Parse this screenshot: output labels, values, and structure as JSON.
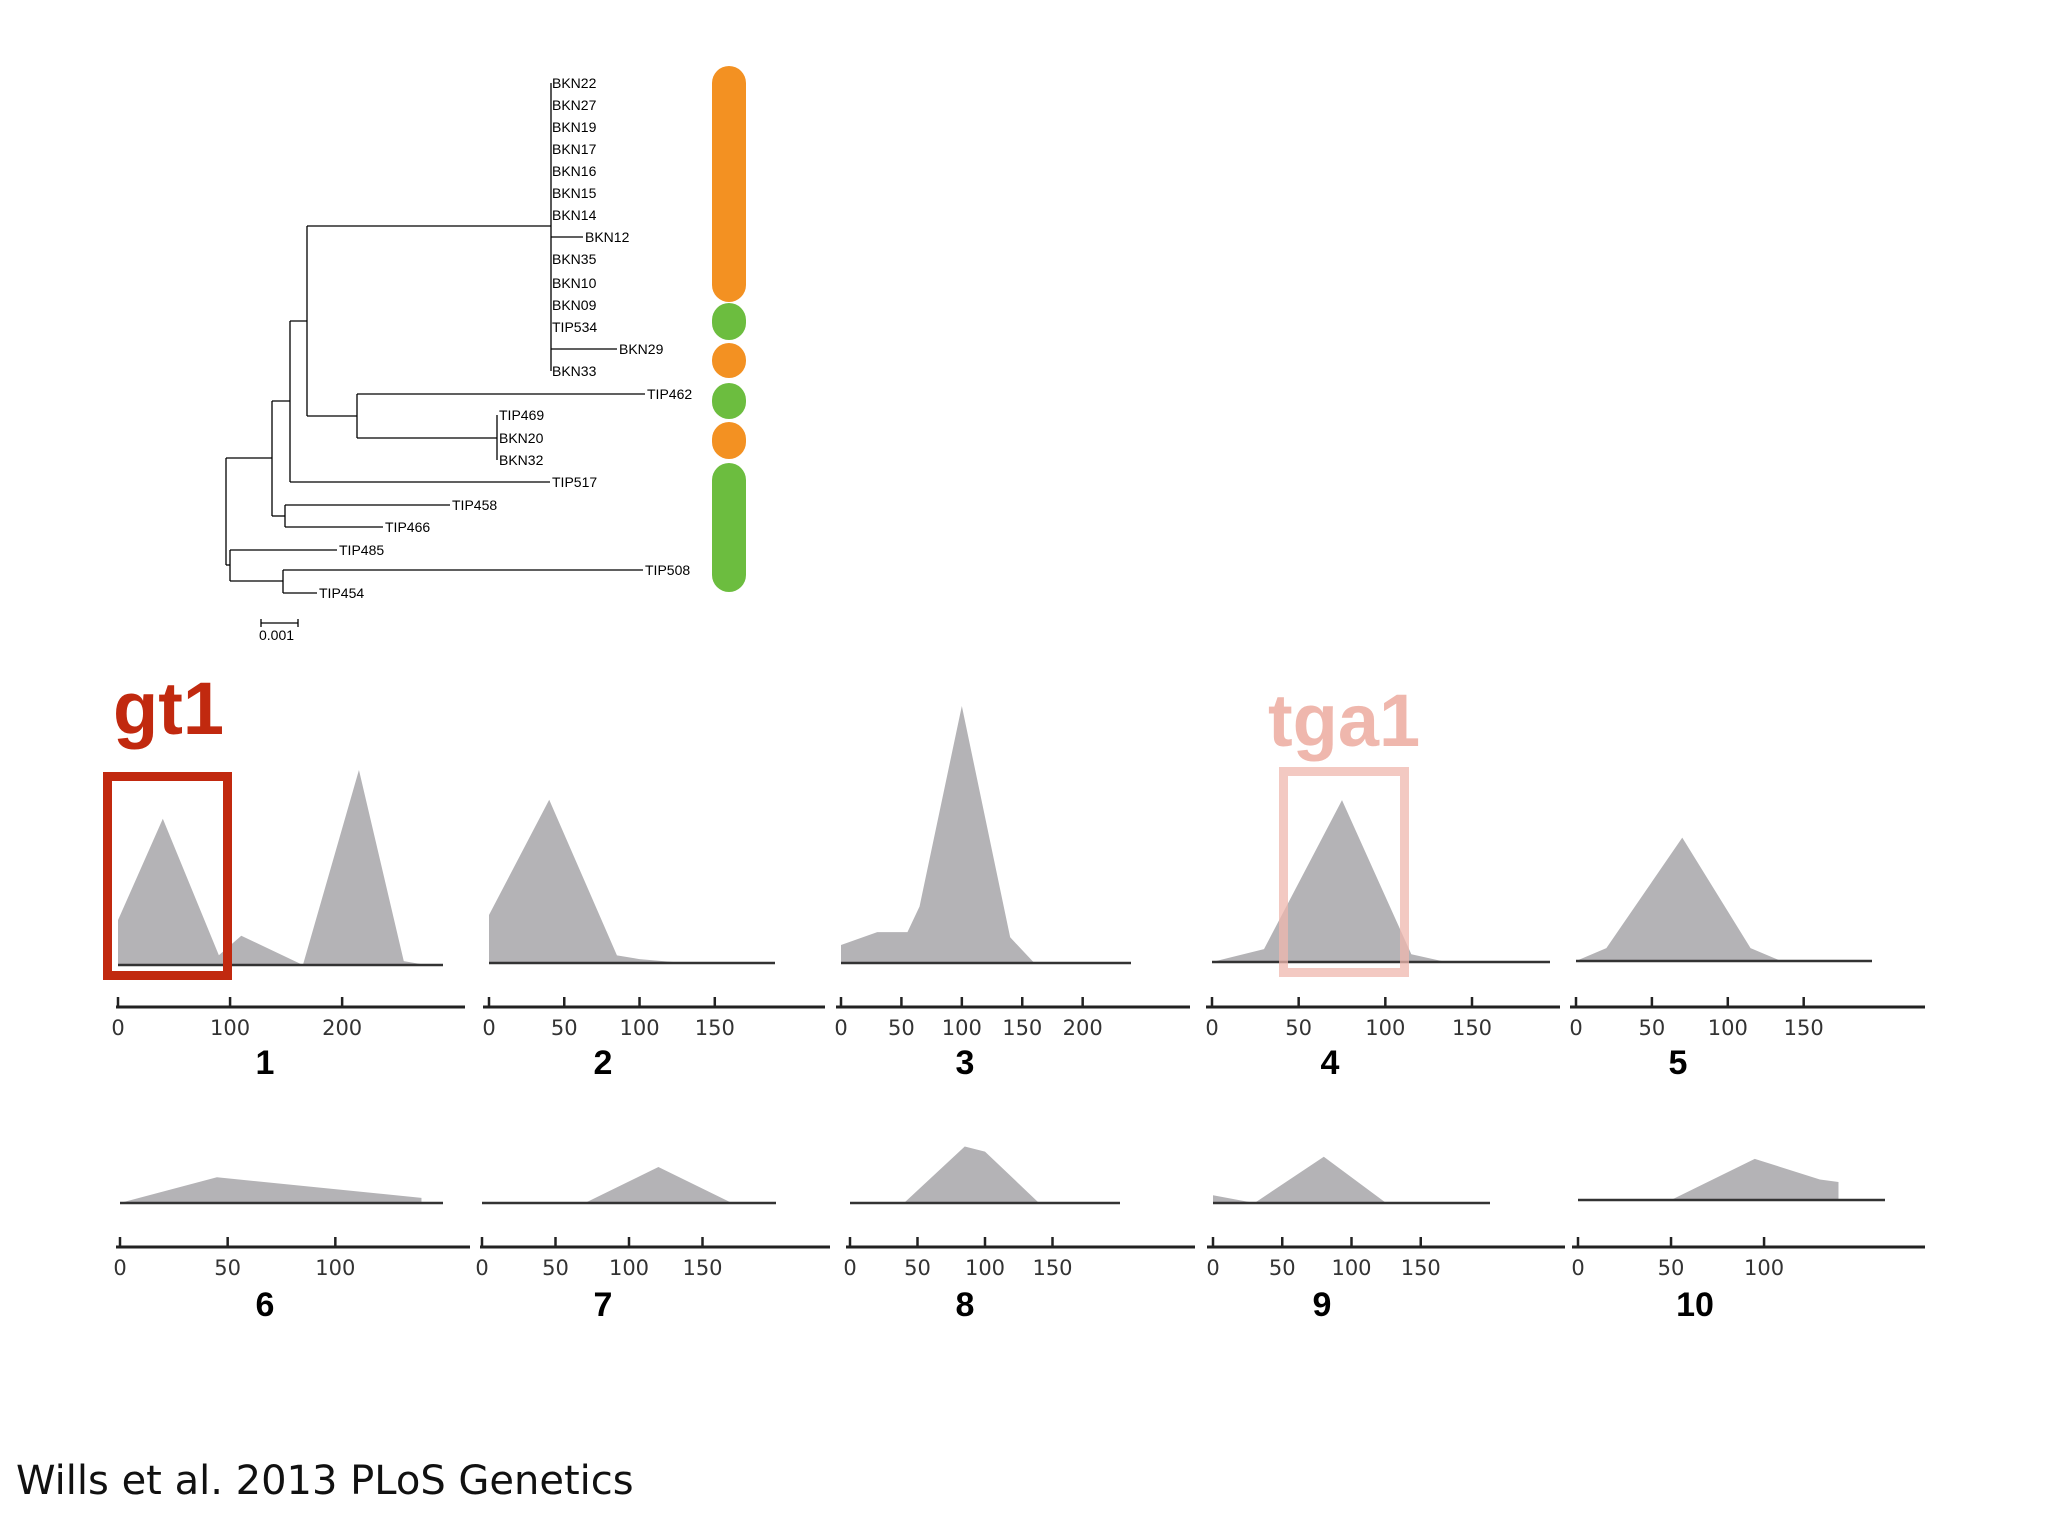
{
  "tree": {
    "taxa": [
      "BKN22",
      "BKN27",
      "BKN19",
      "BKN17",
      "BKN16",
      "BKN15",
      "BKN14",
      "BKN12",
      "BKN35",
      "BKN10",
      "BKN09",
      "TIP534",
      "BKN29",
      "BKN33",
      "TIP462",
      "TIP469",
      "BKN20",
      "BKN32",
      "TIP517",
      "TIP458",
      "TIP466",
      "TIP485",
      "TIP508",
      "TIP454"
    ],
    "scale_label": "0.001",
    "group_colors": {
      "orange": "#f39122",
      "green": "#6cbd3f"
    },
    "group_bars": [
      "orange",
      "green",
      "orange",
      "green",
      "orange",
      "green"
    ]
  },
  "highlights": {
    "gt1": {
      "label": "gt1",
      "color": "#c1290f",
      "panel": "1"
    },
    "tga1": {
      "label": "tga1",
      "color": "#efb7ad",
      "panel": "4"
    }
  },
  "chart_data": [
    {
      "type": "area",
      "panel_label": "1",
      "xlim": [
        0,
        290
      ],
      "ticks": [
        0,
        100,
        200
      ],
      "x": [
        0,
        40,
        90,
        110,
        165,
        215,
        255,
        275
      ],
      "y": [
        0.23,
        0.75,
        0.05,
        0.15,
        0.0,
        1.0,
        0.02,
        0.0
      ]
    },
    {
      "type": "area",
      "panel_label": "2",
      "xlim": [
        0,
        190
      ],
      "ticks": [
        0,
        50,
        100,
        150
      ],
      "x": [
        0,
        40,
        85,
        100,
        130,
        165
      ],
      "y": [
        0.25,
        0.85,
        0.04,
        0.02,
        0.0,
        0.0
      ]
    },
    {
      "type": "area",
      "panel_label": "3",
      "xlim": [
        0,
        240
      ],
      "ticks": [
        0,
        50,
        100,
        150,
        200
      ],
      "x": [
        0,
        30,
        55,
        65,
        100,
        140,
        160,
        200
      ],
      "y": [
        0.07,
        0.12,
        0.12,
        0.22,
        1.0,
        0.1,
        0.0,
        0.0
      ]
    },
    {
      "type": "area",
      "panel_label": "4",
      "xlim": [
        0,
        195
      ],
      "ticks": [
        0,
        50,
        100,
        150
      ],
      "x": [
        0,
        30,
        75,
        115,
        135,
        185
      ],
      "y": [
        0.0,
        0.05,
        0.63,
        0.03,
        0.0,
        0.0
      ]
    },
    {
      "type": "area",
      "panel_label": "5",
      "xlim": [
        0,
        195
      ],
      "ticks": [
        0,
        50,
        100,
        150
      ],
      "x": [
        0,
        20,
        70,
        115,
        135,
        165
      ],
      "y": [
        0.0,
        0.05,
        0.48,
        0.05,
        0.0,
        0.0
      ]
    },
    {
      "type": "area",
      "panel_label": "6",
      "xlim": [
        0,
        150
      ],
      "ticks": [
        0,
        50,
        100
      ],
      "x": [
        0,
        45,
        140
      ],
      "y": [
        0.0,
        0.1,
        0.02
      ]
    },
    {
      "type": "area",
      "panel_label": "7",
      "xlim": [
        0,
        200
      ],
      "ticks": [
        0,
        50,
        100,
        150
      ],
      "x": [
        0,
        70,
        120,
        170
      ],
      "y": [
        0.0,
        0.0,
        0.14,
        0.0
      ]
    },
    {
      "type": "area",
      "panel_label": "8",
      "xlim": [
        0,
        200
      ],
      "ticks": [
        0,
        50,
        100,
        150
      ],
      "x": [
        0,
        40,
        85,
        100,
        140,
        155
      ],
      "y": [
        0.0,
        0.0,
        0.22,
        0.2,
        0.0,
        0.0
      ]
    },
    {
      "type": "area",
      "panel_label": "9",
      "xlim": [
        0,
        200
      ],
      "ticks": [
        0,
        50,
        100,
        150
      ],
      "x": [
        0,
        30,
        80,
        125,
        160
      ],
      "y": [
        0.03,
        0.0,
        0.18,
        0.0,
        0.0
      ]
    },
    {
      "type": "area",
      "panel_label": "10",
      "xlim": [
        0,
        165
      ],
      "ticks": [
        0,
        50,
        100
      ],
      "x": [
        0,
        50,
        95,
        130,
        140
      ],
      "y": [
        0.0,
        0.0,
        0.16,
        0.08,
        0.07
      ]
    }
  ],
  "citation": "Wills et al. 2013 PLoS Genetics"
}
